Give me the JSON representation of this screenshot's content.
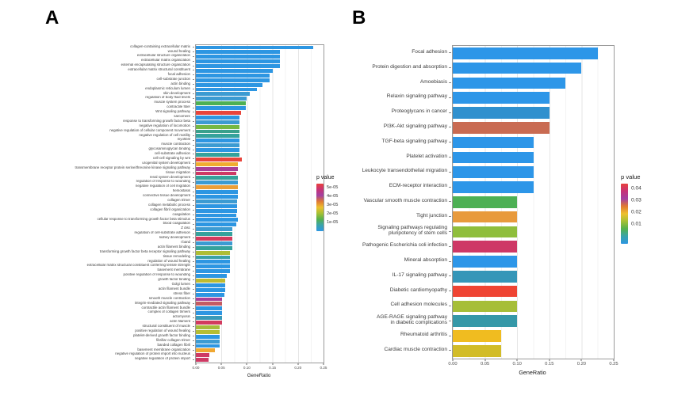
{
  "figure": {
    "panel_letters": [
      "A",
      "B"
    ]
  },
  "chart_data": [
    {
      "type": "bar",
      "panel": "A",
      "orientation": "horizontal",
      "xlabel": "GeneRatio",
      "xlim": [
        0,
        0.25
      ],
      "x_ticks": [
        "0.00",
        "0.05",
        "0.10",
        "0.15",
        "0.20",
        "0.25"
      ],
      "grid": true,
      "legend": {
        "title": "p value",
        "position": "right",
        "ticks": [
          "5e-05",
          "4e-05",
          "3e-05",
          "2e-05",
          "1e-05"
        ],
        "tick_positions_pct": [
          9,
          27,
          45,
          63,
          81
        ],
        "gradient": [
          "#e8413c",
          "#c73377",
          "#a340a2",
          "#e07a33",
          "#eec02e",
          "#a6c034",
          "#55b14c",
          "#3aa4ac",
          "#2d96e2"
        ]
      },
      "rows": [
        {
          "label": "collagen-containing extracellular matrix",
          "value": 0.23,
          "color": "#2d96e2"
        },
        {
          "label": "wound healing",
          "value": 0.165,
          "color": "#2d96e2"
        },
        {
          "label": "extracellular structure organization",
          "value": 0.165,
          "color": "#2d96e2"
        },
        {
          "label": "extracellular matrix organization",
          "value": 0.165,
          "color": "#2d96e2"
        },
        {
          "label": "external encapsulating structure organization",
          "value": 0.164,
          "color": "#2d96e2"
        },
        {
          "label": "extracellular matrix structural constituent",
          "value": 0.15,
          "color": "#2d96e2"
        },
        {
          "label": "focal adhesion",
          "value": 0.145,
          "color": "#2d96e2"
        },
        {
          "label": "cell-substrate junction",
          "value": 0.145,
          "color": "#2d96e2"
        },
        {
          "label": "actin binding",
          "value": 0.13,
          "color": "#2d96e2"
        },
        {
          "label": "endoplasmic reticulum lumen",
          "value": 0.12,
          "color": "#2d96e2"
        },
        {
          "label": "skin development",
          "value": 0.105,
          "color": "#3c9bd2"
        },
        {
          "label": "regulation of body fluid levels",
          "value": 0.1,
          "color": "#3c9bd2"
        },
        {
          "label": "muscle system process",
          "value": 0.098,
          "color": "#4db054"
        },
        {
          "label": "contractile fiber",
          "value": 0.098,
          "color": "#2d96e2"
        },
        {
          "label": "Wnt signaling pathway",
          "value": 0.088,
          "color": "#e8453c"
        },
        {
          "label": "sarcomere",
          "value": 0.086,
          "color": "#2d96e2"
        },
        {
          "label": "response to transforming growth factor beta",
          "value": 0.086,
          "color": "#3c9bd2"
        },
        {
          "label": "negative regulation of locomotion",
          "value": 0.086,
          "color": "#76b843"
        },
        {
          "label": "negative regulation of cellular component movement",
          "value": 0.086,
          "color": "#3aa08c"
        },
        {
          "label": "negative regulation of cell motility",
          "value": 0.086,
          "color": "#35a29c"
        },
        {
          "label": "myofibril",
          "value": 0.086,
          "color": "#2d96e2"
        },
        {
          "label": "muscle contraction",
          "value": 0.086,
          "color": "#3c9bd2"
        },
        {
          "label": "glycosaminoglycan binding",
          "value": 0.086,
          "color": "#2d96e2"
        },
        {
          "label": "cell-substrate adhesion",
          "value": 0.086,
          "color": "#35a29c"
        },
        {
          "label": "cell-cell signaling by wnt",
          "value": 0.09,
          "color": "#e8453c"
        },
        {
          "label": "urogenital system development",
          "value": 0.082,
          "color": "#f0ac30"
        },
        {
          "label": "transmembrane receptor protein serine/threonine kinase signaling pathway",
          "value": 0.082,
          "color": "#a93f98"
        },
        {
          "label": "tissue migration",
          "value": 0.079,
          "color": "#ce3a64"
        },
        {
          "label": "renal system development",
          "value": 0.082,
          "color": "#35a29c"
        },
        {
          "label": "regulation of response to wounding",
          "value": 0.082,
          "color": "#3c9bd2"
        },
        {
          "label": "negative regulation of cell migration",
          "value": 0.082,
          "color": "#ec9f38"
        },
        {
          "label": "hemostasis",
          "value": 0.082,
          "color": "#2d96e2"
        },
        {
          "label": "connective tissue development",
          "value": 0.082,
          "color": "#2d96e2"
        },
        {
          "label": "collagen trimer",
          "value": 0.08,
          "color": "#3c9bd2"
        },
        {
          "label": "collagen metabolic process",
          "value": 0.08,
          "color": "#2d96e2"
        },
        {
          "label": "collagen fibril organization",
          "value": 0.08,
          "color": "#2d96e2"
        },
        {
          "label": "coagulation",
          "value": 0.079,
          "color": "#2d96e2"
        },
        {
          "label": "cellular response to transforming growth factor beta stimulus",
          "value": 0.083,
          "color": "#2d96e2"
        },
        {
          "label": "blood coagulation",
          "value": 0.079,
          "color": "#2d96e2"
        },
        {
          "label": "Z disc",
          "value": 0.072,
          "color": "#3c9bd2"
        },
        {
          "label": "regulation of cell-substrate adhesion",
          "value": 0.072,
          "color": "#35a29c"
        },
        {
          "label": "kidney development",
          "value": 0.072,
          "color": "#d23b5e"
        },
        {
          "label": "I band",
          "value": 0.072,
          "color": "#3c9bd2"
        },
        {
          "label": "actin filament binding",
          "value": 0.072,
          "color": "#35a29c"
        },
        {
          "label": "transforming growth factor beta receptor signaling pathway",
          "value": 0.067,
          "color": "#aebd35"
        },
        {
          "label": "tissue remodeling",
          "value": 0.067,
          "color": "#3aa0a8"
        },
        {
          "label": "regulation of wound healing",
          "value": 0.067,
          "color": "#2d96e2"
        },
        {
          "label": "extracellular matrix structural constituent conferring tensile strength",
          "value": 0.067,
          "color": "#2d96e2"
        },
        {
          "label": "basement membrane",
          "value": 0.067,
          "color": "#2d96e2"
        },
        {
          "label": "positive regulation of response to wounding",
          "value": 0.061,
          "color": "#2d96e2"
        },
        {
          "label": "growth factor binding",
          "value": 0.057,
          "color": "#bfbb30"
        },
        {
          "label": "Golgi lumen",
          "value": 0.058,
          "color": "#2d96e2"
        },
        {
          "label": "actin filament bundle",
          "value": 0.058,
          "color": "#2d96e2"
        },
        {
          "label": "stress fiber",
          "value": 0.056,
          "color": "#2d96e2"
        },
        {
          "label": "smooth muscle contraction",
          "value": 0.052,
          "color": "#a93f98"
        },
        {
          "label": "integrin-mediated signaling pathway",
          "value": 0.052,
          "color": "#c45b63"
        },
        {
          "label": "contractile actin filament bundle",
          "value": 0.052,
          "color": "#2d96e2"
        },
        {
          "label": "complex of collagen trimers",
          "value": 0.052,
          "color": "#2d96e2"
        },
        {
          "label": "actomyosin",
          "value": 0.052,
          "color": "#3899b8"
        },
        {
          "label": "actin filament",
          "value": 0.052,
          "color": "#d23b5e"
        },
        {
          "label": "structural constituent of muscle",
          "value": 0.046,
          "color": "#a6bc3b"
        },
        {
          "label": "positive regulation of wound healing",
          "value": 0.046,
          "color": "#b5bd33"
        },
        {
          "label": "platelet-derived growth factor binding",
          "value": 0.046,
          "color": "#2d96e2"
        },
        {
          "label": "fibrillar collagen trimer",
          "value": 0.046,
          "color": "#3c9bd2"
        },
        {
          "label": "banded collagen fibril",
          "value": 0.046,
          "color": "#2d96e2"
        },
        {
          "label": "basement membrane organization",
          "value": 0.038,
          "color": "#f0a832"
        },
        {
          "label": "negative regulation of protein import into nucleus",
          "value": 0.026,
          "color": "#ce3a64"
        },
        {
          "label": "negative regulation of protein import",
          "value": 0.025,
          "color": "#ce3a64"
        }
      ]
    },
    {
      "type": "bar",
      "panel": "B",
      "orientation": "horizontal",
      "xlabel": "GeneRatio",
      "xlim": [
        0,
        0.25
      ],
      "x_ticks": [
        "0.00",
        "0.05",
        "0.10",
        "0.15",
        "0.20",
        "0.25"
      ],
      "grid": true,
      "legend": {
        "title": "p value",
        "position": "right",
        "ticks": [
          "0.04",
          "0.03",
          "0.02",
          "0.01"
        ],
        "tick_positions_pct": [
          8,
          28,
          47,
          67
        ],
        "gradient": [
          "#e8413c",
          "#c73377",
          "#a340a2",
          "#e07a33",
          "#eec02e",
          "#a6c034",
          "#55b14c",
          "#3aa4ac",
          "#2d96e2"
        ]
      },
      "rows": [
        {
          "label": "Focal adhesion",
          "value": 0.225,
          "color": "#2d96e8"
        },
        {
          "label": "Protein digestion and absorption",
          "value": 0.2,
          "color": "#2d96e8"
        },
        {
          "label": "Amoebiasis",
          "value": 0.175,
          "color": "#2d96e8"
        },
        {
          "label": "Relaxin signaling pathway",
          "value": 0.15,
          "color": "#2d96e8"
        },
        {
          "label": "Proteoglycans in cancer",
          "value": 0.15,
          "color": "#3090ce"
        },
        {
          "label": "PI3K-Akt signaling pathway",
          "value": 0.15,
          "color": "#c96b52"
        },
        {
          "label": "TGF-beta signaling pathway",
          "value": 0.125,
          "color": "#2d96e8"
        },
        {
          "label": "Platelet activation",
          "value": 0.125,
          "color": "#2d96e8"
        },
        {
          "label": "Leukocyte transendothelial migration",
          "value": 0.125,
          "color": "#2d96e8"
        },
        {
          "label": "ECM-receptor interaction",
          "value": 0.125,
          "color": "#2d96e8"
        },
        {
          "label": "Vascular smooth muscle contraction",
          "value": 0.1,
          "color": "#4db054"
        },
        {
          "label": "Tight junction",
          "value": 0.1,
          "color": "#e89a3c"
        },
        {
          "label": "Signaling pathways regulating\npluripotency of stem cells",
          "value": 0.1,
          "color": "#8fbe3c"
        },
        {
          "label": "Pathogenic Escherichia coli infection",
          "value": 0.1,
          "color": "#ce3866"
        },
        {
          "label": "Mineral absorption",
          "value": 0.1,
          "color": "#2d96e8"
        },
        {
          "label": "IL-17 signaling pathway",
          "value": 0.1,
          "color": "#3596b8"
        },
        {
          "label": "Diabetic cardiomyopathy",
          "value": 0.1,
          "color": "#ef4433"
        },
        {
          "label": "Cell adhesion molecules",
          "value": 0.1,
          "color": "#a6be38"
        },
        {
          "label": "AGE-RAGE signaling pathway\nin diabetic complications",
          "value": 0.1,
          "color": "#3598a8"
        },
        {
          "label": "Rheumatoid arthritis",
          "value": 0.075,
          "color": "#f0bc20"
        },
        {
          "label": "Cardiac muscle contraction",
          "value": 0.075,
          "color": "#d2bc28"
        }
      ]
    }
  ]
}
